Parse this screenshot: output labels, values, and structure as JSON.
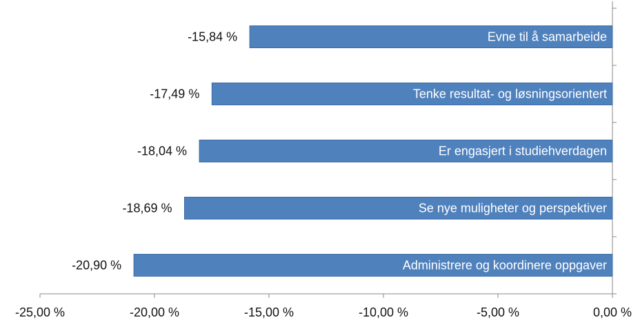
{
  "chart_data": {
    "type": "bar",
    "orientation": "horizontal",
    "categories": [
      "Evne til å samarbeide",
      "Tenke resultat- og løsningsorientert",
      "Er engasjert i studiehverdagen",
      "Se nye muligheter og perspektiver",
      "Administrere og koordinere oppgaver"
    ],
    "values": [
      -15.84,
      -17.49,
      -18.04,
      -18.69,
      -20.9
    ],
    "value_labels": [
      "-15,84 %",
      "-17,49 %",
      "-18,04 %",
      "-18,69 %",
      "-20,90 %"
    ],
    "color": "#4f81bd",
    "xlim": [
      -25,
      0
    ],
    "xticks": [
      {
        "value": -25,
        "label": "-25,00 %"
      },
      {
        "value": -20,
        "label": "-20,00 %"
      },
      {
        "value": -15,
        "label": "-15,00 %"
      },
      {
        "value": -10,
        "label": "-10,00 %"
      },
      {
        "value": -5,
        "label": "-5,00 %"
      },
      {
        "value": 0,
        "label": "0,00 %"
      }
    ],
    "grid": false
  }
}
